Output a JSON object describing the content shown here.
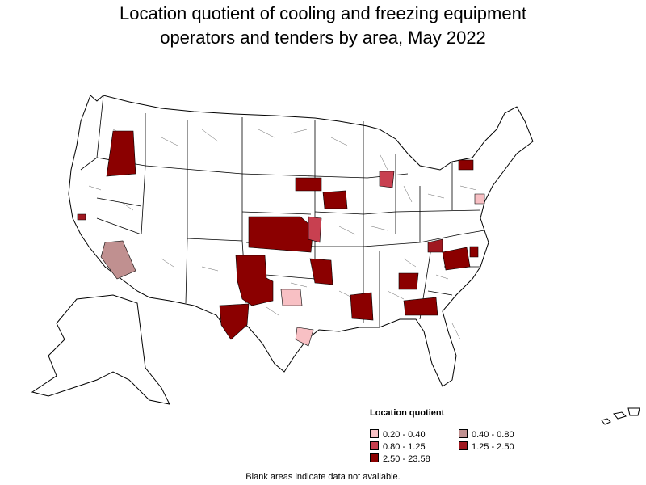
{
  "title_line1": "Location quotient of cooling and freezing equipment",
  "title_line2": "operators and tenders by area, May 2022",
  "legend": {
    "title": "Location quotient",
    "items": [
      {
        "label": "0.20 - 0.40",
        "color": "#f8c0c4"
      },
      {
        "label": "0.40 - 0.80",
        "color": "#c09090"
      },
      {
        "label": "0.80 - 1.25",
        "color": "#c84050"
      },
      {
        "label": "1.25 - 2.50",
        "color": "#a01820"
      },
      {
        "label": "2.50 - 23.58",
        "color": "#8b0000"
      }
    ]
  },
  "footnote": "Blank areas indicate data not available.",
  "colors": {
    "outline": "#000000",
    "blank": "#ffffff"
  }
}
